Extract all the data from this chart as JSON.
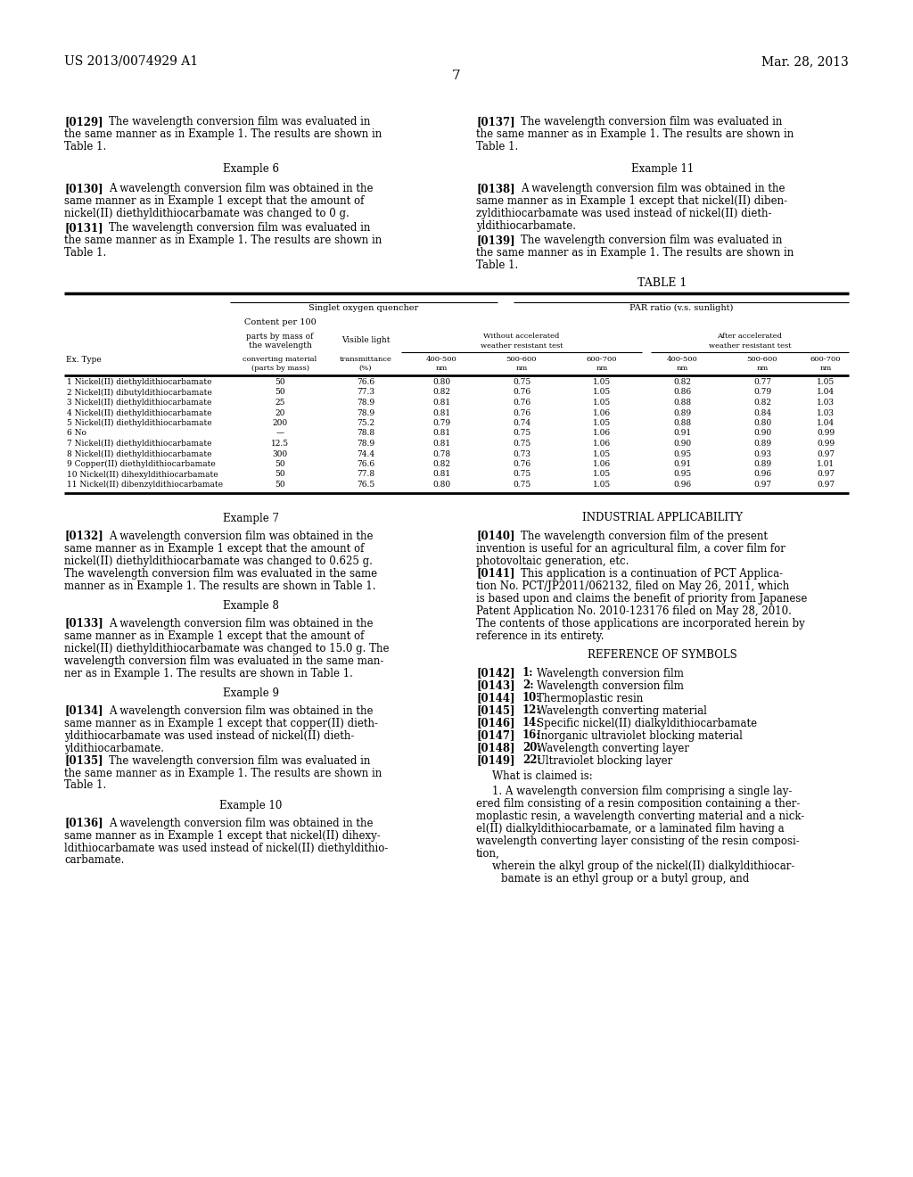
{
  "patent_number": "US 2013/0074929 A1",
  "date": "Mar. 28, 2013",
  "page_number": "7",
  "table_data": [
    [
      "1 Nickel(II) diethyldithiocarbamate",
      "50",
      "76.6",
      "0.80",
      "0.75",
      "1.05",
      "0.82",
      "0.77",
      "1.05"
    ],
    [
      "2 Nickel(II) dibutyldithiocarbamate",
      "50",
      "77.3",
      "0.82",
      "0.76",
      "1.05",
      "0.86",
      "0.79",
      "1.04"
    ],
    [
      "3 Nickel(II) diethyldithiocarbamate",
      "25",
      "78.9",
      "0.81",
      "0.76",
      "1.05",
      "0.88",
      "0.82",
      "1.03"
    ],
    [
      "4 Nickel(II) diethyldithiocarbamate",
      "20",
      "78.9",
      "0.81",
      "0.76",
      "1.06",
      "0.89",
      "0.84",
      "1.03"
    ],
    [
      "5 Nickel(II) diethyldithiocarbamate",
      "200",
      "75.2",
      "0.79",
      "0.74",
      "1.05",
      "0.88",
      "0.80",
      "1.04"
    ],
    [
      "6 No",
      "—",
      "78.8",
      "0.81",
      "0.75",
      "1.06",
      "0.91",
      "0.90",
      "0.99"
    ],
    [
      "7 Nickel(II) diethyldithiocarbamate",
      "12.5",
      "78.9",
      "0.81",
      "0.75",
      "1.06",
      "0.90",
      "0.89",
      "0.99"
    ],
    [
      "8 Nickel(II) diethyldithiocarbamate",
      "300",
      "74.4",
      "0.78",
      "0.73",
      "1.05",
      "0.95",
      "0.93",
      "0.97"
    ],
    [
      "9 Copper(II) diethyldithiocarbamate",
      "50",
      "76.6",
      "0.82",
      "0.76",
      "1.06",
      "0.91",
      "0.89",
      "1.01"
    ],
    [
      "10 Nickel(II) dihexyldithiocarbamate",
      "50",
      "77.8",
      "0.81",
      "0.75",
      "1.05",
      "0.95",
      "0.96",
      "0.97"
    ],
    [
      "11 Nickel(II) dibenzyldithiocarbamate",
      "50",
      "76.5",
      "0.80",
      "0.75",
      "1.05",
      "0.96",
      "0.97",
      "0.97"
    ]
  ]
}
